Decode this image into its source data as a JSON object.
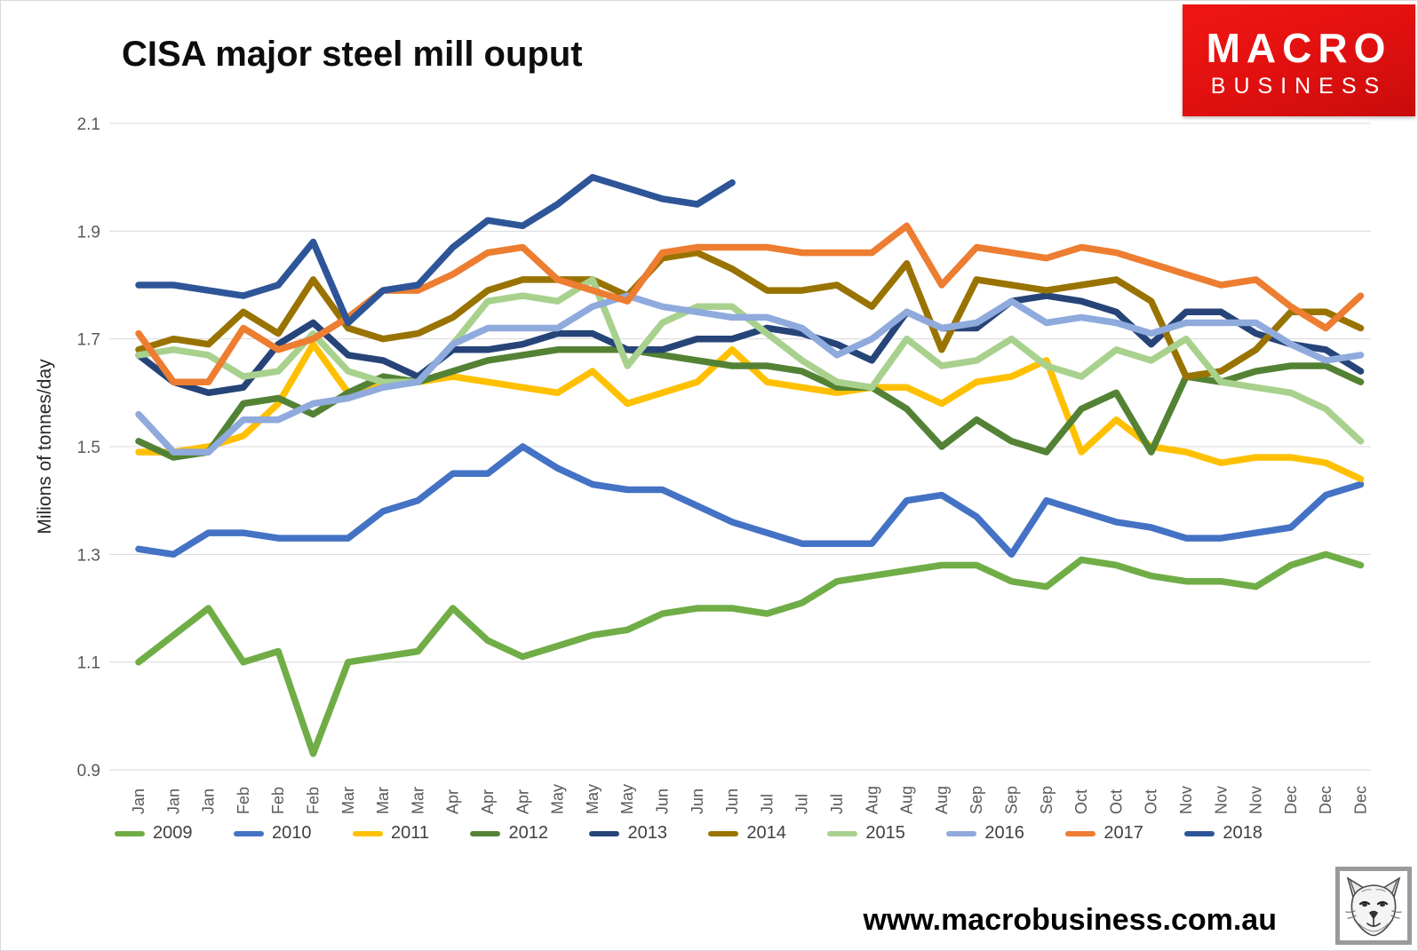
{
  "title": "CISA major steel mill ouput",
  "logo": {
    "line1": "MACRO",
    "line2": "BUSINESS",
    "bg_color": "#e01010",
    "text_color": "#ffffff"
  },
  "footer": {
    "url": "www.macrobusiness.com.au"
  },
  "fox_logo_alt": "fox-head-sketch",
  "chart_data": {
    "type": "line",
    "title": "CISA major steel mill ouput",
    "xlabel": "",
    "ylabel": "Milions of tonnes/day",
    "ylim": [
      0.9,
      2.1
    ],
    "yticks": [
      0.9,
      1.1,
      1.3,
      1.5,
      1.7,
      1.9,
      2.1
    ],
    "grid": "horizontal",
    "grid_color": "#d9d9d9",
    "tick_label_color": "#595959",
    "legend_position": "bottom",
    "x_labels": [
      "Jan",
      "Jan",
      "Jan",
      "Feb",
      "Feb",
      "Feb",
      "Mar",
      "Mar",
      "Mar",
      "Apr",
      "Apr",
      "Apr",
      "May",
      "May",
      "May",
      "Jun",
      "Jun",
      "Jun",
      "Jul",
      "Jul",
      "Jul",
      "Aug",
      "Aug",
      "Aug",
      "Sep",
      "Sep",
      "Sep",
      "Oct",
      "Oct",
      "Oct",
      "Nov",
      "Nov",
      "Nov",
      "Dec",
      "Dec",
      "Dec"
    ],
    "series": [
      {
        "name": "2009",
        "color": "#70ad47",
        "values": [
          1.1,
          1.15,
          1.2,
          1.1,
          1.12,
          0.93,
          1.1,
          1.11,
          1.12,
          1.2,
          1.14,
          1.11,
          1.13,
          1.15,
          1.16,
          1.19,
          1.2,
          1.2,
          1.19,
          1.21,
          1.25,
          1.26,
          1.27,
          1.28,
          1.28,
          1.25,
          1.24,
          1.29,
          1.28,
          1.26,
          1.25,
          1.25,
          1.24,
          1.28,
          1.3,
          1.28
        ]
      },
      {
        "name": "2010",
        "color": "#4472c4",
        "values": [
          1.31,
          1.3,
          1.34,
          1.34,
          1.33,
          1.33,
          1.33,
          1.38,
          1.4,
          1.45,
          1.45,
          1.5,
          1.46,
          1.43,
          1.42,
          1.42,
          1.39,
          1.36,
          1.34,
          1.32,
          1.32,
          1.32,
          1.4,
          1.41,
          1.37,
          1.3,
          1.4,
          1.38,
          1.36,
          1.35,
          1.33,
          1.33,
          1.34,
          1.35,
          1.41,
          1.43
        ]
      },
      {
        "name": "2011",
        "color": "#ffc000",
        "values": [
          1.49,
          1.49,
          1.5,
          1.52,
          1.58,
          1.69,
          1.6,
          1.62,
          1.62,
          1.63,
          1.62,
          1.61,
          1.6,
          1.64,
          1.58,
          1.6,
          1.62,
          1.68,
          1.62,
          1.61,
          1.6,
          1.61,
          1.61,
          1.58,
          1.62,
          1.63,
          1.66,
          1.49,
          1.55,
          1.5,
          1.49,
          1.47,
          1.48,
          1.48,
          1.47,
          1.44
        ]
      },
      {
        "name": "2012",
        "color": "#548235",
        "values": [
          1.51,
          1.48,
          1.49,
          1.58,
          1.59,
          1.56,
          1.6,
          1.63,
          1.62,
          1.64,
          1.66,
          1.67,
          1.68,
          1.68,
          1.68,
          1.67,
          1.66,
          1.65,
          1.65,
          1.64,
          1.61,
          1.61,
          1.57,
          1.5,
          1.55,
          1.51,
          1.49,
          1.57,
          1.6,
          1.49,
          1.63,
          1.62,
          1.64,
          1.65,
          1.65,
          1.62
        ]
      },
      {
        "name": "2013",
        "color": "#264478",
        "values": [
          1.67,
          1.62,
          1.6,
          1.61,
          1.69,
          1.73,
          1.67,
          1.66,
          1.63,
          1.68,
          1.68,
          1.69,
          1.71,
          1.71,
          1.68,
          1.68,
          1.7,
          1.7,
          1.72,
          1.71,
          1.69,
          1.66,
          1.75,
          1.72,
          1.72,
          1.77,
          1.78,
          1.77,
          1.75,
          1.69,
          1.75,
          1.75,
          1.71,
          1.69,
          1.68,
          1.64
        ]
      },
      {
        "name": "2014",
        "color": "#997300",
        "values": [
          1.68,
          1.7,
          1.69,
          1.75,
          1.71,
          1.81,
          1.72,
          1.7,
          1.71,
          1.74,
          1.79,
          1.81,
          1.81,
          1.81,
          1.78,
          1.85,
          1.86,
          1.83,
          1.79,
          1.79,
          1.8,
          1.76,
          1.84,
          1.68,
          1.81,
          1.8,
          1.79,
          1.8,
          1.81,
          1.77,
          1.63,
          1.64,
          1.68,
          1.75,
          1.75,
          1.72
        ]
      },
      {
        "name": "2015",
        "color": "#a9d18e",
        "values": [
          1.67,
          1.68,
          1.67,
          1.63,
          1.64,
          1.71,
          1.64,
          1.62,
          1.62,
          1.69,
          1.77,
          1.78,
          1.77,
          1.81,
          1.65,
          1.73,
          1.76,
          1.76,
          1.71,
          1.66,
          1.62,
          1.61,
          1.7,
          1.65,
          1.66,
          1.7,
          1.65,
          1.63,
          1.68,
          1.66,
          1.7,
          1.62,
          1.61,
          1.6,
          1.57,
          1.51
        ]
      },
      {
        "name": "2016",
        "color": "#8faadc",
        "values": [
          1.56,
          1.49,
          1.49,
          1.55,
          1.55,
          1.58,
          1.59,
          1.61,
          1.62,
          1.69,
          1.72,
          1.72,
          1.72,
          1.76,
          1.78,
          1.76,
          1.75,
          1.74,
          1.74,
          1.72,
          1.67,
          1.7,
          1.75,
          1.72,
          1.73,
          1.77,
          1.73,
          1.74,
          1.73,
          1.71,
          1.73,
          1.73,
          1.73,
          1.69,
          1.66,
          1.67
        ]
      },
      {
        "name": "2017",
        "color": "#ed7d31",
        "values": [
          1.71,
          1.62,
          1.62,
          1.72,
          1.68,
          1.7,
          1.74,
          1.79,
          1.79,
          1.82,
          1.86,
          1.87,
          1.81,
          1.79,
          1.77,
          1.86,
          1.87,
          1.87,
          1.87,
          1.86,
          1.86,
          1.86,
          1.91,
          1.8,
          1.87,
          1.86,
          1.85,
          1.87,
          1.86,
          1.84,
          1.82,
          1.8,
          1.81,
          1.76,
          1.72,
          1.78
        ]
      },
      {
        "name": "2018",
        "color": "#2e5597",
        "values": [
          1.8,
          1.8,
          1.79,
          1.78,
          1.8,
          1.88,
          1.73,
          1.79,
          1.8,
          1.87,
          1.92,
          1.91,
          1.95,
          2.0,
          1.98,
          1.96,
          1.95,
          1.99
        ]
      }
    ]
  }
}
